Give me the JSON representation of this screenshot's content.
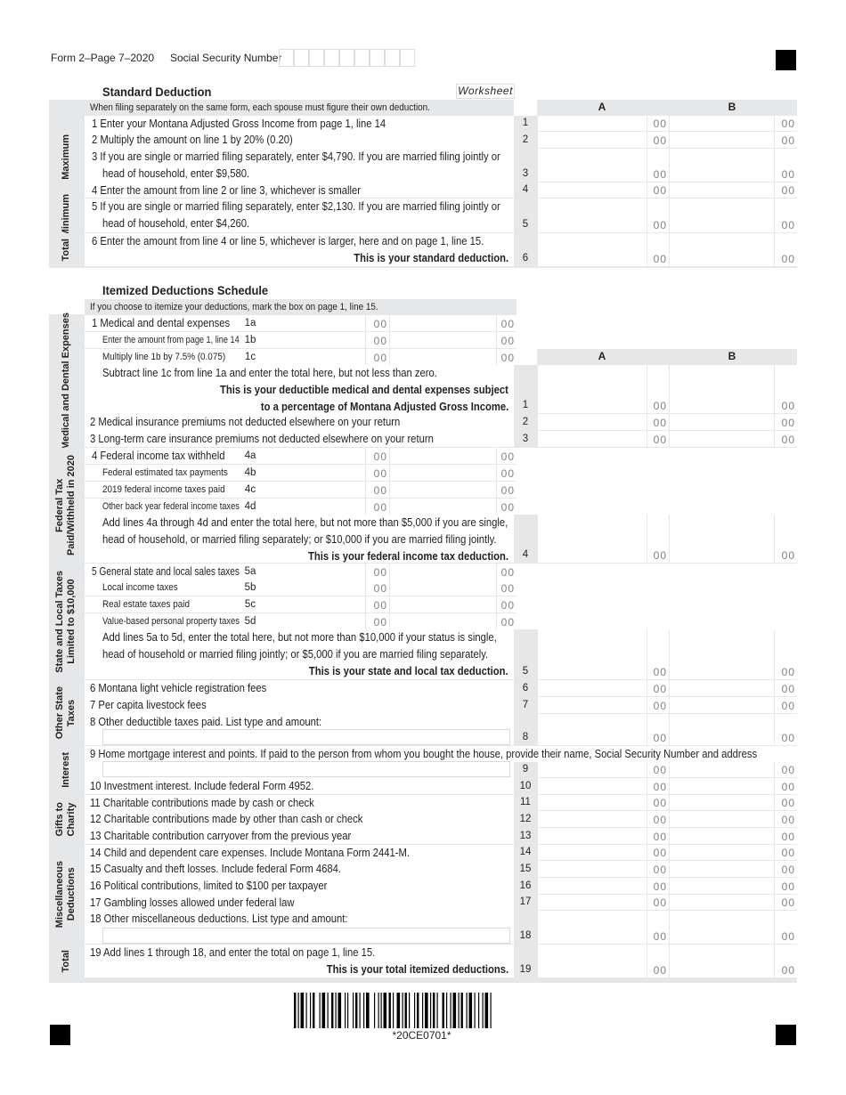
{
  "header": {
    "form_label": "Form 2–Page 7–2020",
    "ssn_label": "Social Security Number",
    "ssn_digits": [
      "",
      "",
      "",
      "",
      "",
      "",
      "",
      "",
      ""
    ]
  },
  "cents": "00",
  "barcode_text": "*20CE0701*",
  "standard": {
    "title": "Standard Deduction",
    "worksheet": "Worksheet",
    "note": "When filing separately on the same form, each spouse must figure their own deduction.",
    "col_a": "A",
    "col_b": "B",
    "sections": [
      {
        "label": [
          "Maximum"
        ]
      },
      {
        "label": [
          "Minimum"
        ]
      },
      {
        "label": [
          "Total"
        ]
      }
    ],
    "lines": [
      {
        "num": "1",
        "text": [
          "1  Enter your Montana Adjusted Gross Income from page 1, line 14"
        ],
        "bold": []
      },
      {
        "num": "2",
        "text": [
          "2  Multiply the amount on line 1 by 20% (0.20)"
        ],
        "bold": []
      },
      {
        "num": "3",
        "text": [
          "3  If you are single or married filing separately, enter $4,790. If you are married filing jointly or",
          "head of household, enter $9,580."
        ],
        "bold": []
      },
      {
        "num": "4",
        "text": [
          "4  Enter the amount from line 2 or line 3, whichever is smaller"
        ],
        "bold": []
      },
      {
        "num": "5",
        "text": [
          "5  If you are single or married filing separately, enter $2,130. If you are married filing jointly or",
          "head of household, enter $4,260."
        ],
        "bold": []
      },
      {
        "num": "6",
        "text": [
          "6  Enter the amount from line 4 or line 5, whichever is larger, here and on page 1, line 15."
        ],
        "bold": [
          "This is your standard deduction."
        ]
      }
    ]
  },
  "itemized": {
    "title": "Itemized Deductions Schedule",
    "note": "If you choose to itemize your deductions, mark the box on page 1, line 15.",
    "col_a": "A",
    "col_b": "B",
    "sections": [
      {
        "label": [
          "Medical and Dental Expenses"
        ]
      },
      {
        "label": [
          "Federal Tax",
          "Paid/Withheld in 2020"
        ]
      },
      {
        "label": [
          "State and Local Taxes",
          "Limited to $10,000"
        ]
      },
      {
        "label": [
          "Other State",
          "Taxes"
        ]
      },
      {
        "label": [
          "Interest"
        ]
      },
      {
        "label": [
          "Gifts to",
          "Charity"
        ]
      },
      {
        "label": [
          "Miscellaneous",
          "Deductions"
        ]
      },
      {
        "label": [
          "Total"
        ]
      }
    ],
    "sublines": [
      {
        "code": "1a",
        "label": "1  Medical and dental expenses"
      },
      {
        "code": "1b",
        "label": "Enter the amount from page 1, line 14"
      },
      {
        "code": "1c",
        "label": "Multiply line 1b by 7.5% (0.075)"
      },
      {
        "code": "4a",
        "label": "4  Federal income tax withheld"
      },
      {
        "code": "4b",
        "label": "Federal estimated tax payments"
      },
      {
        "code": "4c",
        "label": "2019 federal income taxes paid"
      },
      {
        "code": "4d",
        "label": "Other back year federal income taxes"
      },
      {
        "code": "5a",
        "label": "5  General state and local sales taxes"
      },
      {
        "code": "5b",
        "label": "Local income taxes"
      },
      {
        "code": "5c",
        "label": "Real estate taxes paid"
      },
      {
        "code": "5d",
        "label": "Value-based personal property taxes"
      }
    ],
    "lines": [
      {
        "num": "1",
        "text": [
          "Subtract line 1c from line 1a and enter the total here, but not less than zero."
        ],
        "bold": [
          "This is your deductible medical and dental expenses subject",
          "to a percentage of Montana Adjusted Gross Income."
        ]
      },
      {
        "num": "2",
        "text": [
          "2  Medical insurance premiums not deducted elsewhere on your return"
        ],
        "bold": []
      },
      {
        "num": "3",
        "text": [
          "3  Long-term care insurance premiums not deducted elsewhere on your return"
        ],
        "bold": []
      },
      {
        "num": "4",
        "text": [
          "Add lines 4a through 4d and enter the total here, but not more than $5,000 if you are single,",
          "head of household, or married filing separately; or $10,000 if you are married filing jointly."
        ],
        "bold": [
          "This is your federal income tax deduction."
        ]
      },
      {
        "num": "5",
        "text": [
          "Add lines 5a to 5d, enter the total here, but not more than $10,000 if your status is single,",
          "head of household or married filing jointly; or $5,000 if you are married filing separately."
        ],
        "bold": [
          "This is your state and local tax deduction."
        ]
      },
      {
        "num": "6",
        "text": [
          "6  Montana light vehicle registration fees"
        ],
        "bold": []
      },
      {
        "num": "7",
        "text": [
          "7  Per capita livestock fees"
        ],
        "bold": []
      },
      {
        "num": "8",
        "text": [
          "8  Other deductible taxes paid. List type and amount:"
        ],
        "bold": []
      },
      {
        "num": "9",
        "text": [
          "9  Home mortgage interest and points. If paid to the person from whom you bought the house, provide their name, Social Security Number and address"
        ],
        "bold": []
      },
      {
        "num": "10",
        "text": [
          "10  Investment interest. Include federal Form 4952."
        ],
        "bold": []
      },
      {
        "num": "11",
        "text": [
          "11  Charitable contributions made by cash or check"
        ],
        "bold": []
      },
      {
        "num": "12",
        "text": [
          "12  Charitable contributions made by other than cash or check"
        ],
        "bold": []
      },
      {
        "num": "13",
        "text": [
          "13  Charitable contribution carryover from the previous year"
        ],
        "bold": []
      },
      {
        "num": "14",
        "text": [
          "14  Child and dependent care expenses. Include Montana Form 2441-M."
        ],
        "bold": []
      },
      {
        "num": "15",
        "text": [
          "15  Casualty and theft losses. Include federal Form 4684."
        ],
        "bold": []
      },
      {
        "num": "16",
        "text": [
          "16  Political contributions, limited to $100 per taxpayer"
        ],
        "bold": []
      },
      {
        "num": "17",
        "text": [
          "17  Gambling losses allowed under federal law"
        ],
        "bold": []
      },
      {
        "num": "18",
        "text": [
          "18  Other miscellaneous deductions. List type and amount:"
        ],
        "bold": []
      },
      {
        "num": "19",
        "text": [
          "19  Add lines 1 through 18, and enter the total on page 1, line 15."
        ],
        "bold": [
          "This is your total itemized deductions."
        ]
      }
    ]
  }
}
